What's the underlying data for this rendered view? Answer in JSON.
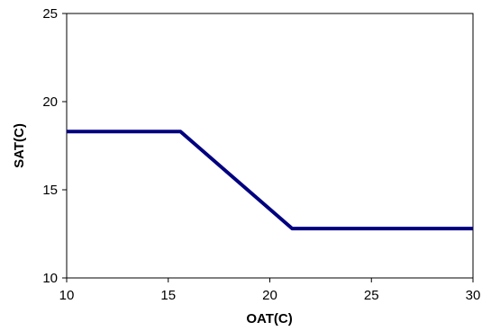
{
  "chart_data": {
    "type": "line",
    "title": "",
    "xlabel": "OAT(C)",
    "ylabel": "SAT(C)",
    "xlim": [
      10,
      30
    ],
    "ylim": [
      10,
      25
    ],
    "x_ticks": [
      10,
      15,
      20,
      25,
      30
    ],
    "y_ticks": [
      10,
      15,
      20,
      25
    ],
    "grid": false,
    "legend": "none",
    "series": [
      {
        "color": "#000080",
        "x": [
          10,
          15.6,
          21.1,
          30
        ],
        "y": [
          18.3,
          18.3,
          12.8,
          12.8
        ]
      }
    ]
  }
}
